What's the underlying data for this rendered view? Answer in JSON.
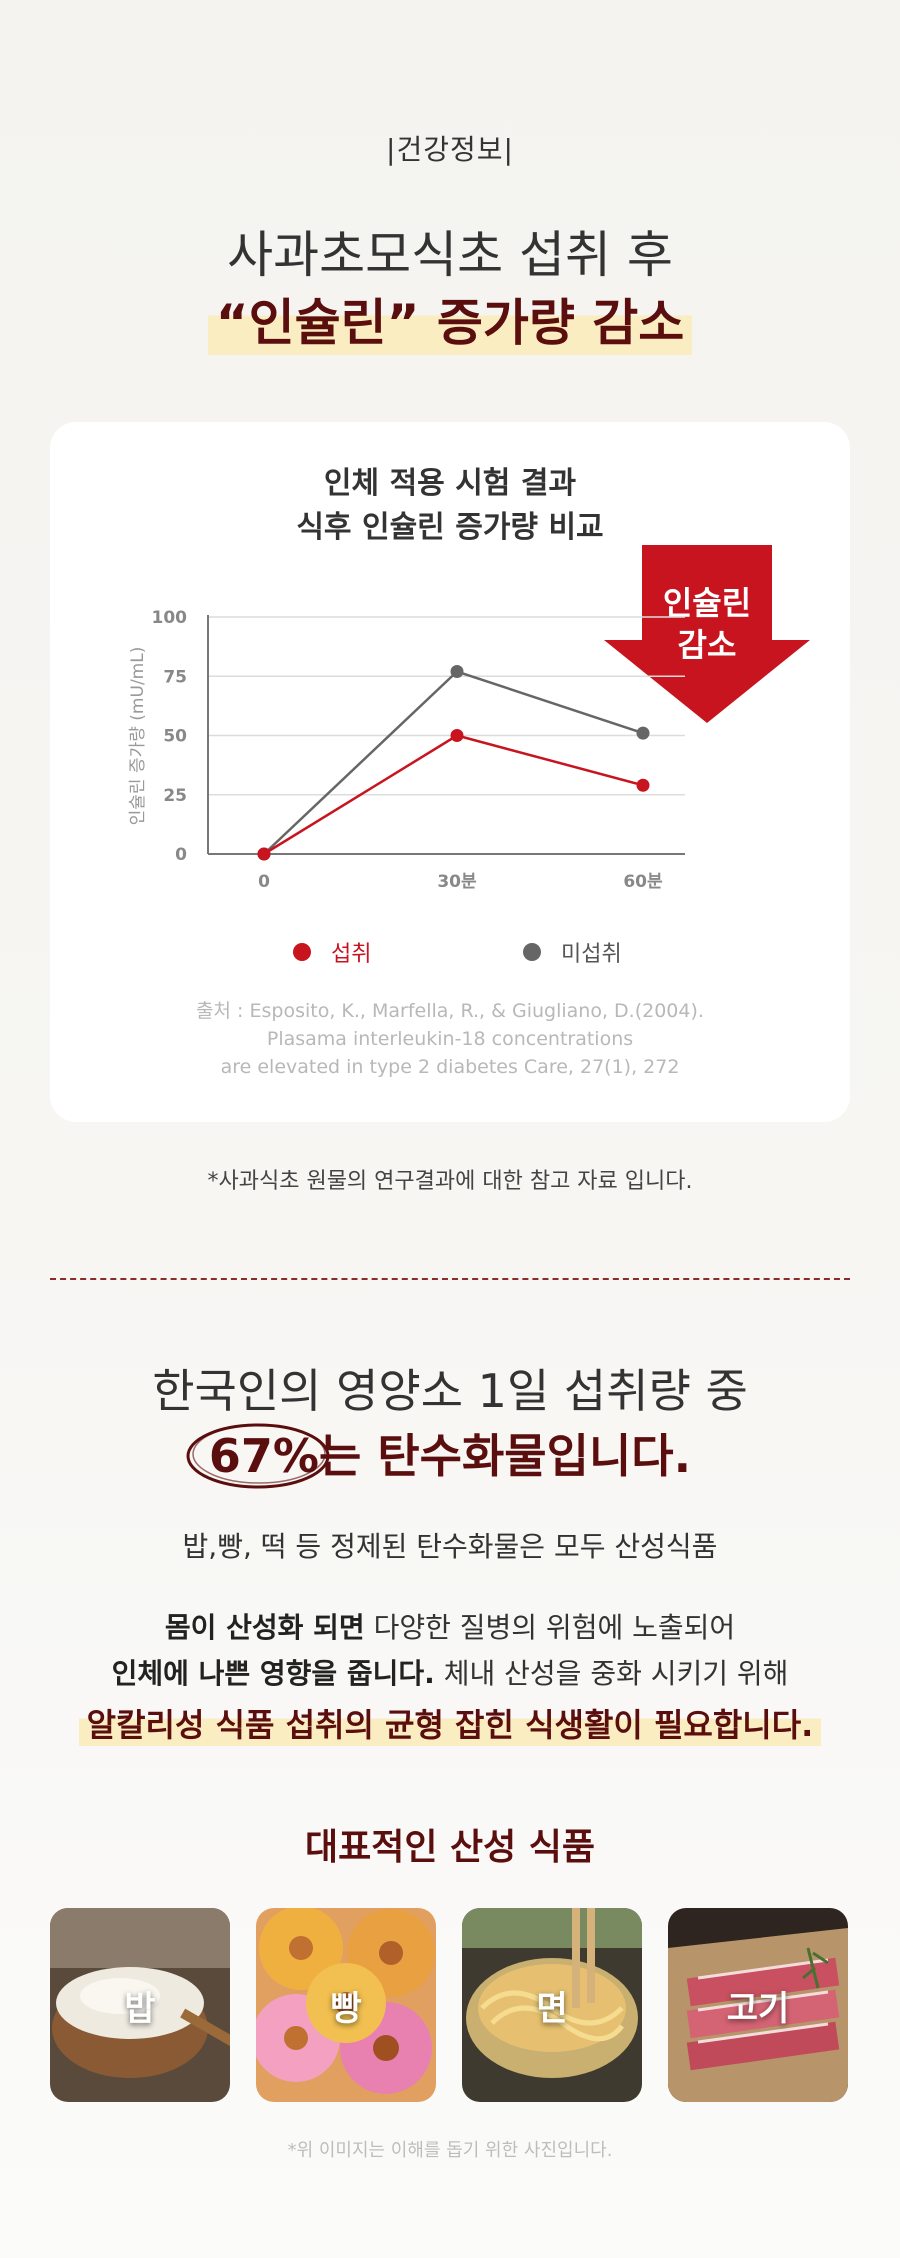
{
  "header": {
    "tag": "|건강정보|",
    "title_line1": "사과초모식초 섭취 후",
    "title_line2": "“인슐린” 증가량 감소"
  },
  "card": {
    "title_line1": "인체 적용 시험 결과",
    "title_line2": "식후 인슐린 증가량 비교",
    "arrow_line1": "인슐린",
    "arrow_line2": "감소",
    "source_line1": "출처 : Esposito, K., Marfella, R., & Giugliano, D.(2004).",
    "source_line2": "Plasama interleukin-18 concentrations",
    "source_line3": "are elevated in type 2 diabetes Care, 27(1), 272"
  },
  "chart_data": {
    "type": "line",
    "categories": [
      "0",
      "30분",
      "60분"
    ],
    "series": [
      {
        "name": "섭취",
        "values": [
          0,
          50,
          29
        ],
        "color": "#c8141e"
      },
      {
        "name": "미섭취",
        "values": [
          0,
          77,
          51
        ],
        "color": "#666666"
      }
    ],
    "ylabel": "인슐린 증가량 (mU/mL)",
    "yticks": [
      "0",
      "25",
      "50",
      "75",
      "100"
    ],
    "ylim": [
      0,
      100
    ],
    "grid": true,
    "legend": "bottom"
  },
  "note": "*사과식초 원물의 연구결과에 대한 참고 자료 입니다.",
  "section2": {
    "title_line1": "한국인의 영양소 1일 섭취량 중",
    "percent": "67%",
    "title_line2_rest": "는 탄수화물입니다.",
    "p1": "밥,빵, 떡 등 정제된 탄수화물은 모두 산성식품",
    "p2_bold": "몸이 산성화 되면",
    "p2_rest": " 다양한 질병의 위험에 노출되어",
    "p3_bold": "인체에 나쁜 영향을 줍니다.",
    "p3_rest": " 체내 산성을 중화 시키기 위해",
    "highlight": "알칼리성 식품 섭취의 균형 잡힌 식생활이 필요합니다."
  },
  "section3": {
    "title": "대표적인 산성 식품",
    "foods": [
      {
        "label": "밥",
        "image": "rice-bowl"
      },
      {
        "label": "빵",
        "image": "donuts"
      },
      {
        "label": "면",
        "image": "noodles-pot"
      },
      {
        "label": "고기",
        "image": "raw-meat"
      }
    ],
    "image_note": "*위 이미지는 이해를 돕기 위한 사진입니다."
  }
}
